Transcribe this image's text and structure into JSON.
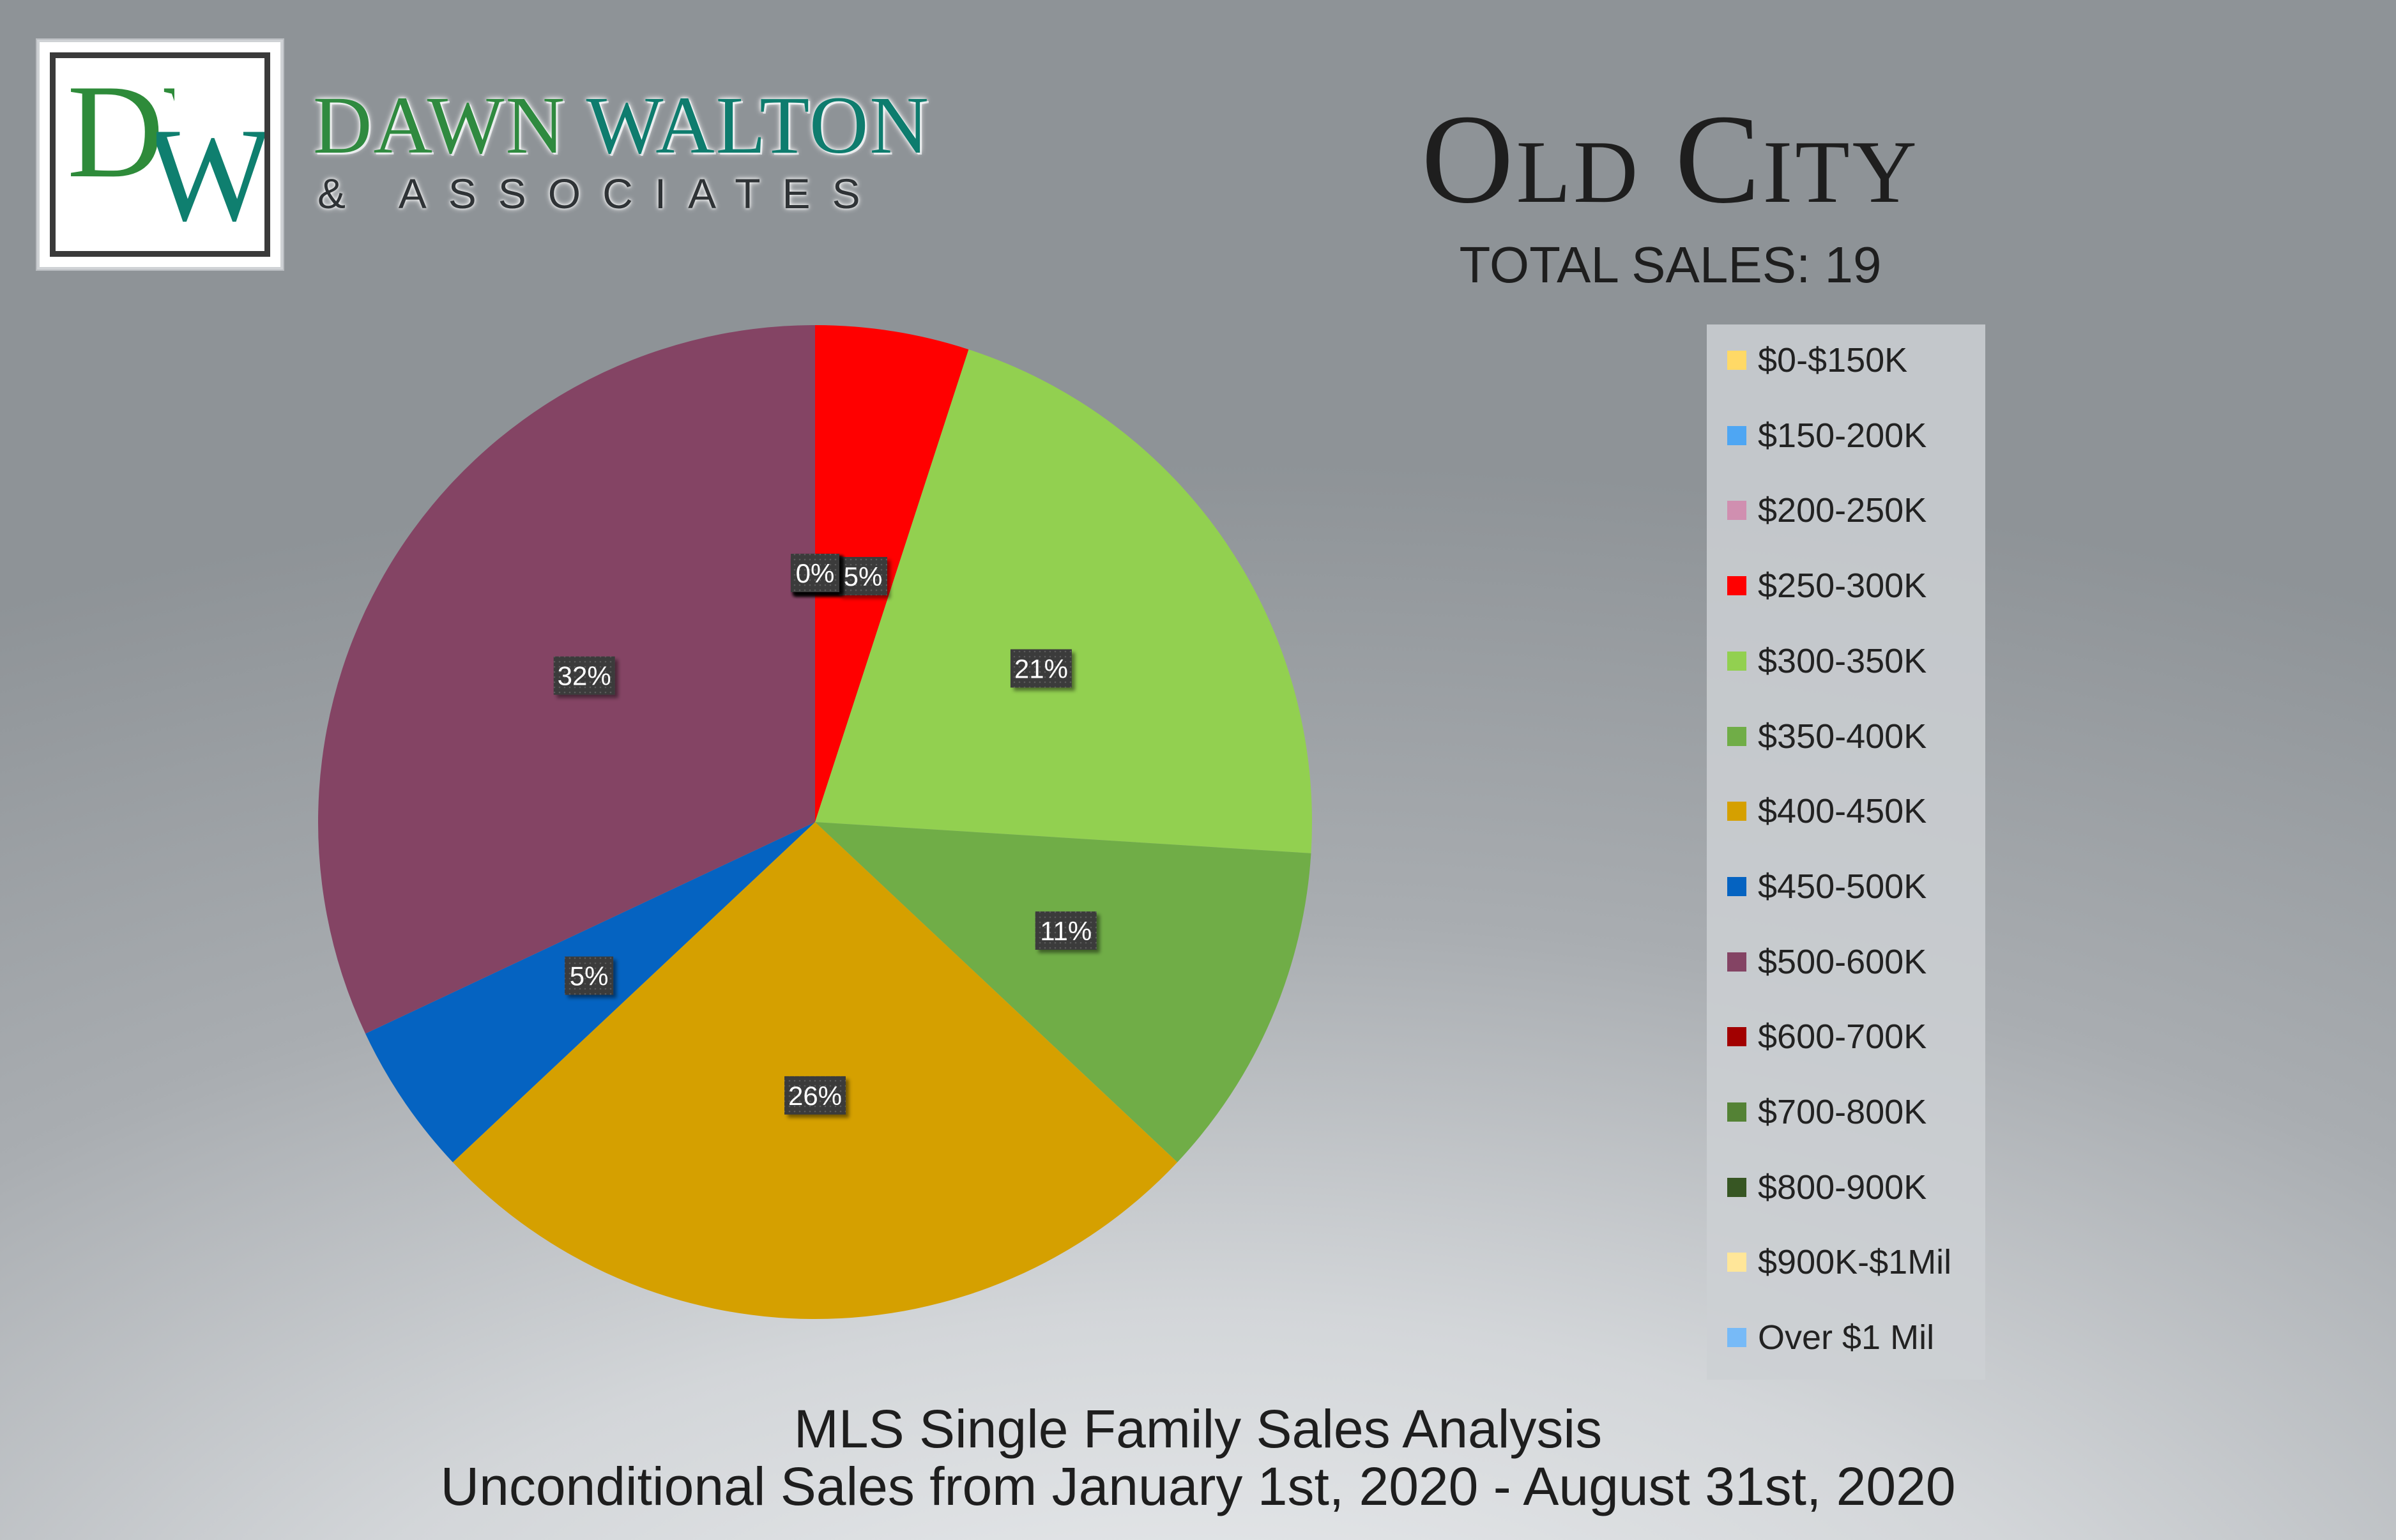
{
  "brand": {
    "logo_letters": "DW",
    "name_part1": "DAWN",
    "name_part2": "WALTON",
    "subtitle": "& ASSOCIATES"
  },
  "header": {
    "city": "Old City",
    "total_sales_text": "TOTAL SALES: 19"
  },
  "footer": {
    "line1": "MLS Single Family Sales Analysis",
    "line2": "Unconditional Sales from January 1st, 2020 - August 31st, 2020"
  },
  "chart_data": {
    "type": "pie",
    "title": "",
    "unit": "%",
    "legend_position": "right",
    "categories": [
      "$0-$150K",
      "$150-200K",
      "$200-250K",
      "$250-300K",
      "$300-350K",
      "$350-400K",
      "$400-450K",
      "$450-500K",
      "$500-600K",
      "$600-700K",
      "$700-800K",
      "$800-900K",
      "$900K-$1Mil",
      "Over $1 Mil"
    ],
    "values": [
      0,
      0,
      0,
      5,
      21,
      11,
      26,
      5,
      32,
      0,
      0,
      0,
      0,
      0
    ],
    "data_labels": [
      "0%",
      "0%",
      "0%",
      "5%",
      "21%",
      "11%",
      "26%",
      "5%",
      "32%",
      "0%",
      "0%",
      "0%",
      "0%",
      "0%"
    ],
    "colors": [
      "#ffd966",
      "#4ea6f3",
      "#d08fb0",
      "#ff0000",
      "#92d050",
      "#70ad47",
      "#d5a000",
      "#0563c1",
      "#844464",
      "#a20000",
      "#548235",
      "#375623",
      "#ffe699",
      "#77baf7"
    ],
    "label_color": "#3a3a3a"
  }
}
